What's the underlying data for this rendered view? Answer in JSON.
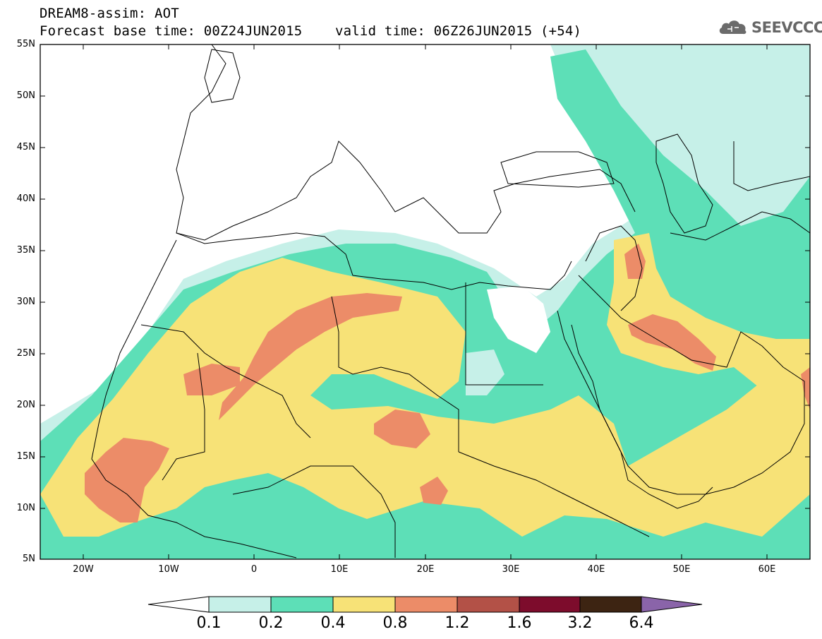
{
  "title": {
    "line1": "DREAM8-assim: AOT",
    "line2_base": "Forecast base time: 00Z24JUN2015",
    "line2_valid": "valid time: 06Z26JUN2015 (+54)"
  },
  "logo": {
    "text": "SEEVCCC",
    "icon": "cloud-logo-icon",
    "color": "#6b6b6b"
  },
  "map": {
    "lon_range": [
      -25,
      65
    ],
    "lat_range": [
      5,
      55
    ],
    "lat_ticks": [
      "55N",
      "50N",
      "45N",
      "40N",
      "35N",
      "30N",
      "25N",
      "20N",
      "15N",
      "10N",
      "5N"
    ],
    "lon_ticks": [
      "20W",
      "10W",
      "0",
      "10E",
      "20E",
      "30E",
      "40E",
      "50E",
      "60E"
    ]
  },
  "colorbar": {
    "labels": [
      "0.1",
      "0.2",
      "0.4",
      "0.8",
      "1.2",
      "1.6",
      "3.2",
      "6.4"
    ],
    "colors": [
      "#ffffff",
      "#c6f0e8",
      "#5ddfb7",
      "#f7e277",
      "#ec8c68",
      "#b35147",
      "#7d0c2c",
      "#3d2412",
      "#8a64a9"
    ]
  },
  "colors": {
    "c01": "#c6f0e8",
    "c02": "#5ddfb7",
    "c04": "#f7e277",
    "c08": "#ec8c68"
  }
}
